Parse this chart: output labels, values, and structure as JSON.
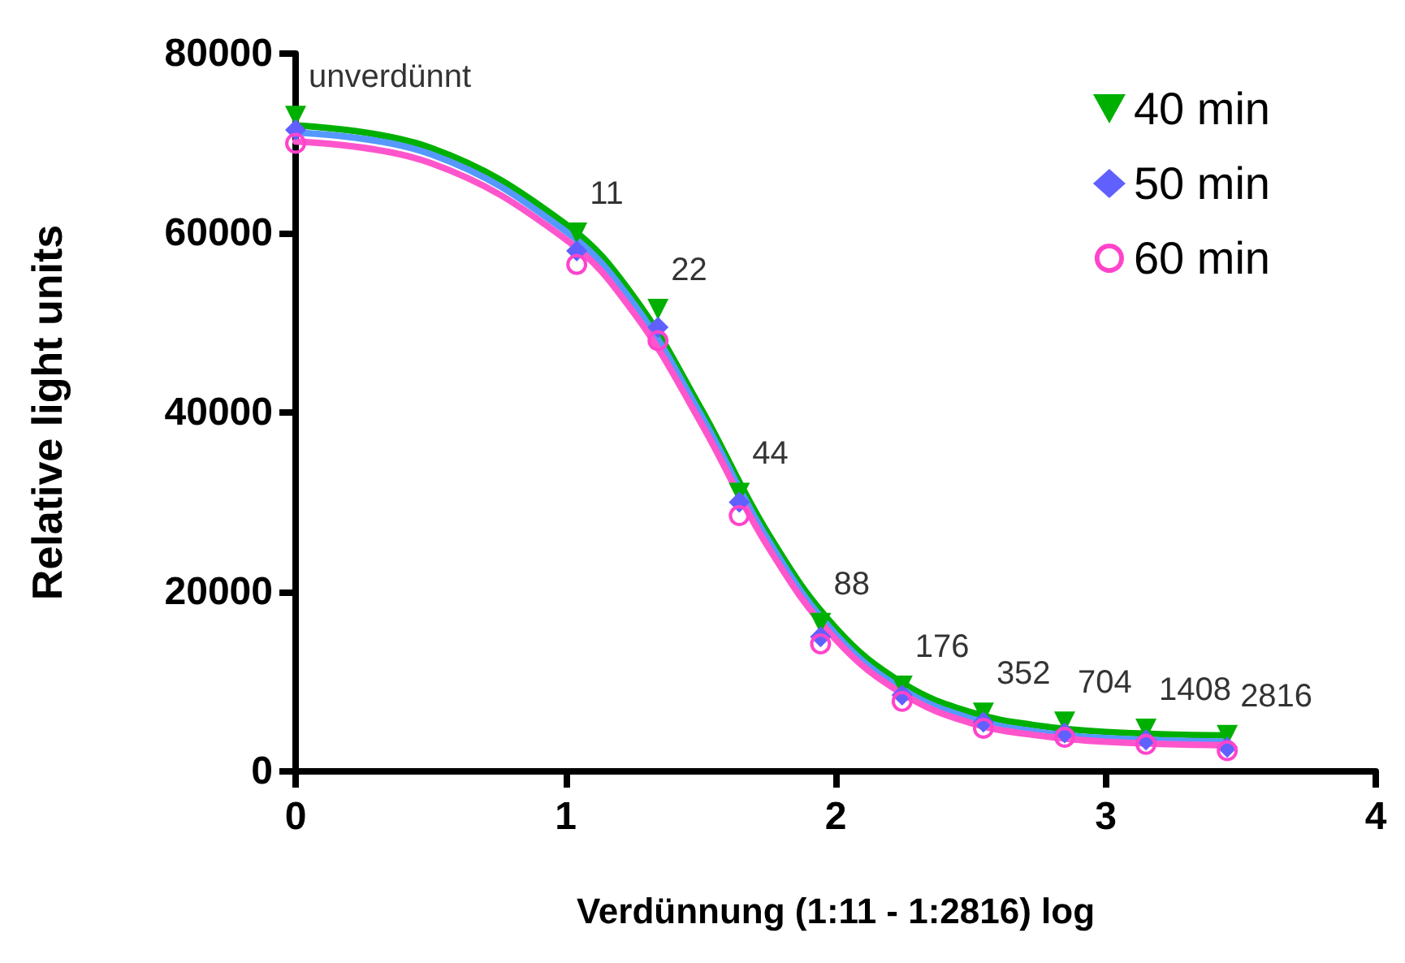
{
  "chart_data": {
    "type": "scatter",
    "xlabel": "Verdünnung (1:11 - 1:2816) log",
    "ylabel": "Relative light units",
    "xlim": [
      0,
      4
    ],
    "xticks": [
      0,
      1,
      2,
      3,
      4
    ],
    "ylim": [
      0,
      80000
    ],
    "yticks": [
      0,
      20000,
      40000,
      60000,
      80000
    ],
    "grid": false,
    "legend": "top right",
    "x": [
      0,
      1.041,
      1.342,
      1.643,
      1.944,
      2.246,
      2.547,
      2.848,
      3.149,
      3.45
    ],
    "series": [
      {
        "name": "40 min",
        "color": "#00b000",
        "marker": "triangle",
        "values": [
          73000,
          60000,
          51500,
          31000,
          16500,
          9500,
          6500,
          5500,
          4700,
          4000
        ]
      },
      {
        "name": "50 min",
        "color": "#6060ff",
        "marker": "diamond",
        "values": [
          71500,
          58000,
          49500,
          30000,
          15000,
          8500,
          5500,
          4300,
          3500,
          2700
        ]
      },
      {
        "name": "60 min",
        "color": "#ff44cc",
        "marker": "circle",
        "values": [
          70000,
          56500,
          48000,
          28500,
          14200,
          7800,
          4800,
          3800,
          3000,
          2300
        ]
      },
      {
        "type": "line",
        "color": "#00b000",
        "marker": "none",
        "x": [
          0,
          0.5,
          1,
          1.25,
          1.5,
          1.75,
          2,
          2.25,
          2.5,
          2.75,
          3,
          3.45
        ],
        "values": [
          72000,
          69500,
          61000,
          53000,
          40500,
          26500,
          16000,
          9800,
          6600,
          5100,
          4400,
          4000
        ]
      },
      {
        "type": "line",
        "color": "#5599ff",
        "marker": "none",
        "x": [
          0,
          0.5,
          1,
          1.25,
          1.5,
          1.75,
          2,
          2.25,
          2.5,
          2.75,
          3,
          3.45
        ],
        "values": [
          71200,
          68800,
          60200,
          52200,
          39800,
          25800,
          15300,
          9100,
          5900,
          4400,
          3700,
          3300
        ]
      },
      {
        "type": "line",
        "color": "#ff55cc",
        "marker": "none",
        "x": [
          0,
          0.5,
          1,
          1.25,
          1.5,
          1.75,
          2,
          2.25,
          2.5,
          2.75,
          3,
          3.45
        ],
        "values": [
          70200,
          67800,
          59300,
          51200,
          38900,
          25000,
          14700,
          8600,
          5400,
          4000,
          3300,
          2900
        ]
      }
    ],
    "annotations": [
      {
        "text": "unverdünnt",
        "x": 0,
        "y": 73000
      },
      {
        "text": "11",
        "x": 1.041,
        "y": 60000
      },
      {
        "text": "22",
        "x": 1.342,
        "y": 51500
      },
      {
        "text": "44",
        "x": 1.643,
        "y": 31000
      },
      {
        "text": "88",
        "x": 1.944,
        "y": 16500
      },
      {
        "text": "176",
        "x": 2.246,
        "y": 9500
      },
      {
        "text": "352",
        "x": 2.547,
        "y": 6500
      },
      {
        "text": "704",
        "x": 2.848,
        "y": 5500
      },
      {
        "text": "1408",
        "x": 3.149,
        "y": 4700
      },
      {
        "text": "2816",
        "x": 3.45,
        "y": 4000
      }
    ]
  }
}
